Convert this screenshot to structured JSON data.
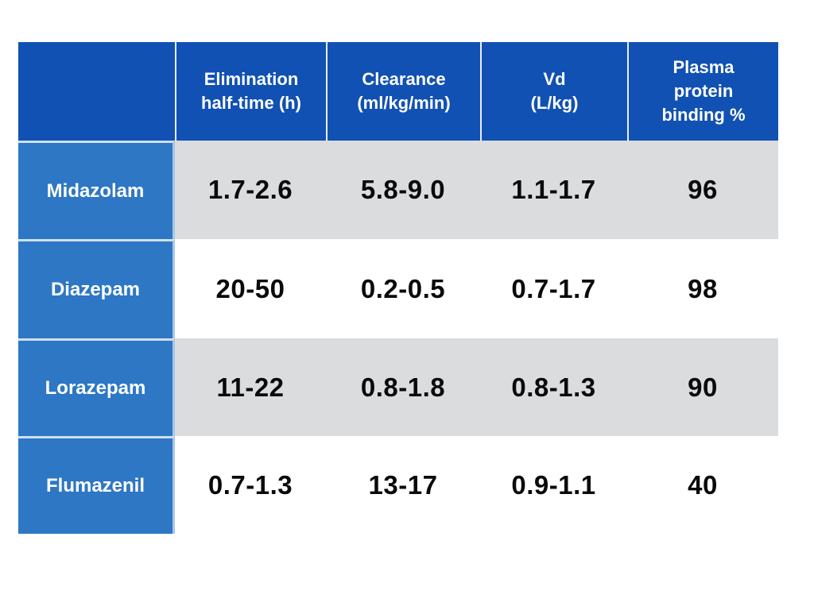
{
  "colors": {
    "header_bg": "#1151b3",
    "label_bg": "#2e77c4",
    "stripe_bg": "#dbdcde",
    "white_bg": "#ffffff"
  },
  "table": {
    "header": {
      "col0": "",
      "col1": "Elimination\nhalf-time (h)",
      "col2": "Clearance\n(ml/kg/min)",
      "col3": "Vd\n(L/kg)",
      "col4": "Plasma\nprotein\nbinding %"
    },
    "rows": [
      {
        "drug": "Midazolam",
        "half_time": "1.7-2.6",
        "clearance": "5.8-9.0",
        "vd": "1.1-1.7",
        "binding": "96"
      },
      {
        "drug": "Diazepam",
        "half_time": "20-50",
        "clearance": "0.2-0.5",
        "vd": "0.7-1.7",
        "binding": "98"
      },
      {
        "drug": "Lorazepam",
        "half_time": "11-22",
        "clearance": "0.8-1.8",
        "vd": "0.8-1.3",
        "binding": "90"
      },
      {
        "drug": "Flumazenil",
        "half_time": "0.7-1.3",
        "clearance": "13-17",
        "vd": "0.9-1.1",
        "binding": "40"
      }
    ]
  }
}
